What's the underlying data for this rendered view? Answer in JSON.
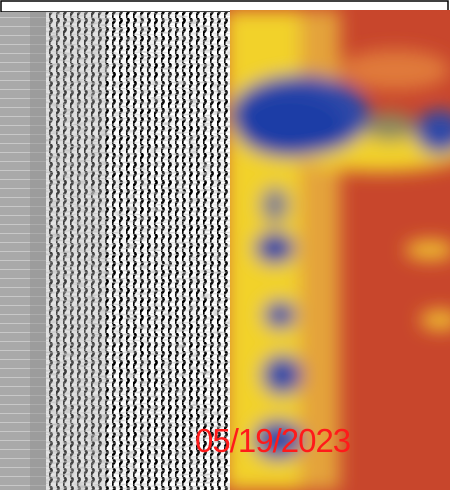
{
  "image": {
    "date_stamp": "05/19/2023"
  }
}
